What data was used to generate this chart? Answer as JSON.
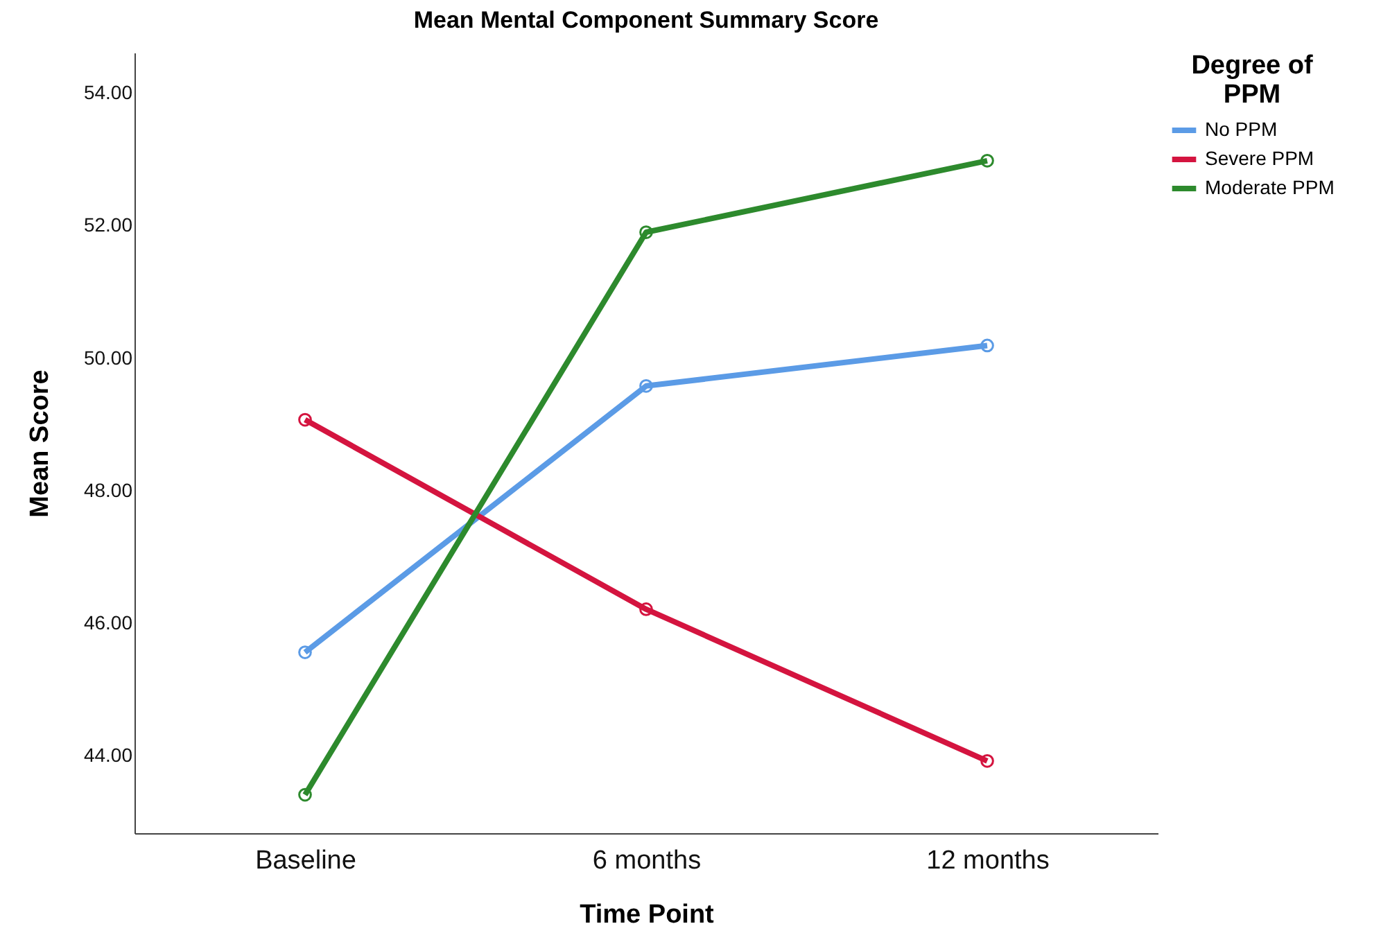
{
  "chart_data": {
    "type": "line",
    "title": "Mean Mental Component Summary Score",
    "xlabel": "Time Point",
    "ylabel": "Mean Score",
    "legend_title": "Degree of PPM",
    "categories": [
      "Baseline",
      "6 months",
      "12 months"
    ],
    "series": [
      {
        "name": "No PPM",
        "color": "#5b9be6",
        "values": [
          45.56,
          49.58,
          50.19
        ]
      },
      {
        "name": "Severe PPM",
        "color": "#d4143f",
        "values": [
          49.07,
          46.21,
          43.92
        ]
      },
      {
        "name": "Moderate PPM",
        "color": "#2d8a2d",
        "values": [
          43.41,
          51.9,
          52.98
        ]
      }
    ],
    "ylim": [
      42.83,
      54.61
    ],
    "yticks": [
      {
        "value": 44,
        "label": "44.00"
      },
      {
        "value": 46,
        "label": "46.00"
      },
      {
        "value": 48,
        "label": "48.00"
      },
      {
        "value": 50,
        "label": "50.00"
      },
      {
        "value": 52,
        "label": "52.00"
      },
      {
        "value": 54,
        "label": "54.00"
      }
    ],
    "grid": false,
    "legend": "top right",
    "marker": "circle",
    "line_style": "solid"
  }
}
